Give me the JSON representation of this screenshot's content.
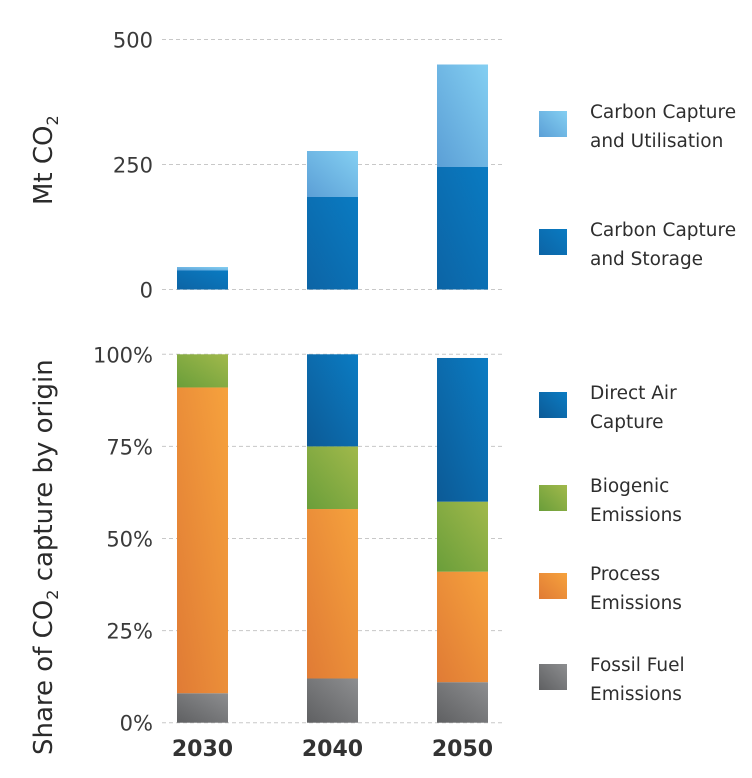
{
  "chart_data": [
    {
      "type": "bar",
      "stacked": true,
      "title": "",
      "xlabel": "",
      "ylabel": "Mt CO2",
      "ylabel_main": "Mt CO",
      "ylabel_sub": "2",
      "categories": [
        "2030",
        "2040",
        "2050"
      ],
      "ylim": [
        0,
        500
      ],
      "yticks": [
        0,
        250,
        500
      ],
      "ytick_labels": [
        "0",
        "250",
        "500"
      ],
      "grid": true,
      "legend_position": "right",
      "series": [
        {
          "name": "Carbon Capture and Storage",
          "label_lines": [
            "Carbon Capture",
            "and Storage"
          ],
          "color": "#0c64a5",
          "color_light": "#0a7bc2",
          "values": [
            38,
            185,
            245
          ]
        },
        {
          "name": "Carbon Capture and Utilisation",
          "label_lines": [
            "Carbon Capture",
            "and Utilisation"
          ],
          "color": "#5b9fd6",
          "color_light": "#84cff2",
          "values": [
            7,
            92,
            205
          ]
        }
      ]
    },
    {
      "type": "bar",
      "stacked": true,
      "title": "",
      "xlabel": "",
      "ylabel": "Share of CO2 capture by origin",
      "ylabel_pre": "Share of CO",
      "ylabel_sub": "2",
      "ylabel_post": " capture by origin",
      "categories": [
        "2030",
        "2040",
        "2050"
      ],
      "ylim": [
        0,
        100
      ],
      "yticks": [
        0,
        25,
        50,
        75,
        100
      ],
      "ytick_labels": [
        "0%",
        "25%",
        "50%",
        "75%",
        "100%"
      ],
      "grid": true,
      "legend_position": "right",
      "series": [
        {
          "name": "Fossil Fuel Emissions",
          "label_lines": [
            "Fossil Fuel",
            "Emissions"
          ],
          "color": "#5f6062",
          "color_light": "#8d8e90",
          "values": [
            8,
            12,
            11
          ]
        },
        {
          "name": "Process Emissions",
          "label_lines": [
            "Process",
            "Emissions"
          ],
          "color": "#e07b35",
          "color_light": "#f6a23d",
          "values": [
            83,
            46,
            30
          ]
        },
        {
          "name": "Biogenic Emissions",
          "label_lines": [
            "Biogenic",
            "Emissions"
          ],
          "color": "#6a9e3a",
          "color_light": "#a1b94b",
          "values": [
            9,
            17,
            19
          ]
        },
        {
          "name": "Direct Air Capture",
          "label_lines": [
            "Direct Air",
            "Capture"
          ],
          "color": "#0c5a96",
          "color_light": "#0b7cc3",
          "values": [
            0,
            25,
            39
          ]
        }
      ]
    }
  ]
}
